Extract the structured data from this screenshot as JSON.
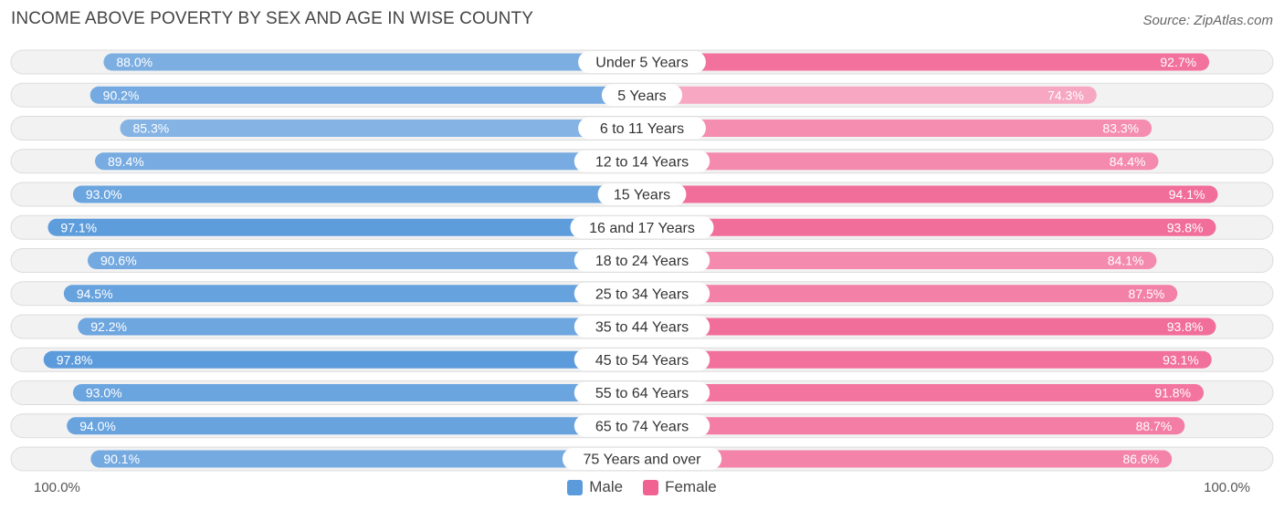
{
  "header": {
    "title": "INCOME ABOVE POVERTY BY SEX AND AGE IN WISE COUNTY",
    "source": "Source: ZipAtlas.com"
  },
  "axis": {
    "left_label": "100.0%",
    "right_label": "100.0%"
  },
  "legend": {
    "male_label": "Male",
    "female_label": "Female"
  },
  "colors": {
    "male": "#5b9bdb",
    "female": "#f06292",
    "row_bg": "#f2f2f2",
    "row_border": "#dcdcdc"
  },
  "chart_data": {
    "type": "bar",
    "orientation": "horizontal-diverging",
    "title": "INCOME ABOVE POVERTY BY SEX AND AGE IN WISE COUNTY",
    "categories": [
      "Under 5 Years",
      "5 Years",
      "6 to 11 Years",
      "12 to 14 Years",
      "15 Years",
      "16 and 17 Years",
      "18 to 24 Years",
      "25 to 34 Years",
      "35 to 44 Years",
      "45 to 54 Years",
      "55 to 64 Years",
      "65 to 74 Years",
      "75 Years and over"
    ],
    "series": [
      {
        "name": "Male",
        "values": [
          88.0,
          90.2,
          85.3,
          89.4,
          93.0,
          97.1,
          90.6,
          94.5,
          92.2,
          97.8,
          93.0,
          94.0,
          90.1
        ],
        "labels": [
          "88.0%",
          "90.2%",
          "85.3%",
          "89.4%",
          "93.0%",
          "97.1%",
          "90.6%",
          "94.5%",
          "92.2%",
          "97.8%",
          "93.0%",
          "94.0%",
          "90.1%"
        ]
      },
      {
        "name": "Female",
        "values": [
          92.7,
          74.3,
          83.3,
          84.4,
          94.1,
          93.8,
          84.1,
          87.5,
          93.8,
          93.1,
          91.8,
          88.7,
          86.6
        ],
        "labels": [
          "92.7%",
          "74.3%",
          "83.3%",
          "84.4%",
          "94.1%",
          "93.8%",
          "84.1%",
          "87.5%",
          "93.8%",
          "93.1%",
          "91.8%",
          "88.7%",
          "86.6%"
        ]
      }
    ],
    "xlim": [
      0,
      100
    ],
    "xlabel_left": "100.0%",
    "xlabel_right": "100.0%",
    "legend_position": "bottom-center"
  }
}
